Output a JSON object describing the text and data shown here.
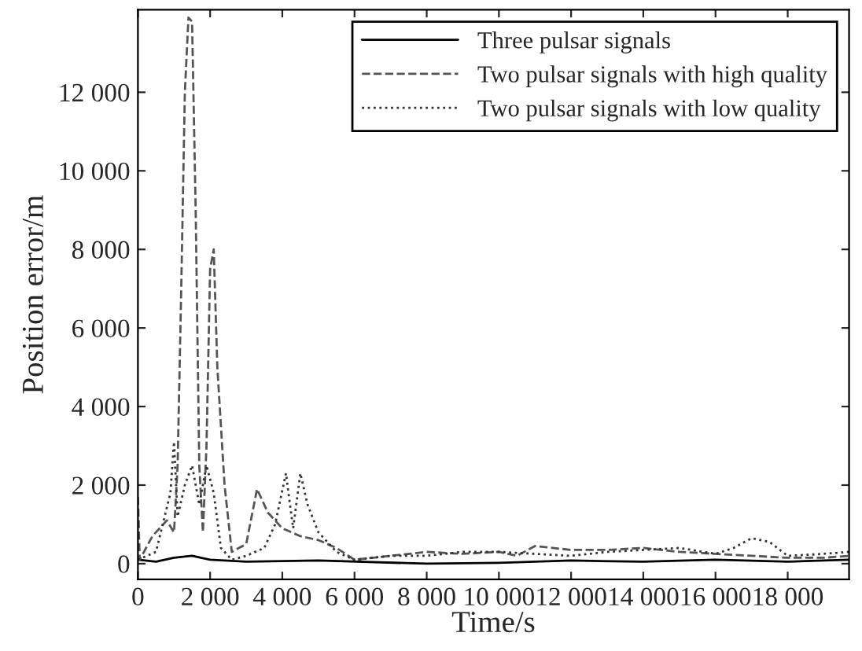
{
  "chart_data": {
    "type": "line",
    "xlabel": "Time/s",
    "ylabel": "Position error/m",
    "xlim": [
      0,
      19700
    ],
    "ylim": [
      -400,
      14100
    ],
    "xticks": [
      0,
      {
        "value": 2000,
        "label": "2 000"
      },
      {
        "value": 4000,
        "label": "4 000"
      },
      {
        "value": 6000,
        "label": "6 000"
      },
      {
        "value": 8000,
        "label": "8 000"
      },
      {
        "value": 10000,
        "label": "10 000"
      },
      {
        "value": 12000,
        "label": "12 000"
      },
      {
        "value": 14000,
        "label": "14 000"
      },
      {
        "value": 16000,
        "label": "16 000"
      },
      {
        "value": 18000,
        "label": "18 000"
      }
    ],
    "yticks": [
      0,
      {
        "value": 2000,
        "label": "2 000"
      },
      {
        "value": 4000,
        "label": "4 000"
      },
      {
        "value": 6000,
        "label": "6 000"
      },
      {
        "value": 8000,
        "label": "8 000"
      },
      {
        "value": 10000,
        "label": "10 000"
      },
      {
        "value": 12000,
        "label": "12 000"
      }
    ],
    "grid": false,
    "legend": "top right",
    "marker": "none",
    "series": [
      {
        "name": "Three pulsar signals",
        "color": "#000000",
        "line_style": "solid",
        "x": [
          0,
          500,
          1000,
          1500,
          2000,
          3000,
          5000,
          8000,
          10000,
          12000,
          14000,
          16000,
          18000,
          19700
        ],
        "values": [
          100,
          50,
          150,
          200,
          100,
          50,
          80,
          0,
          20,
          80,
          50,
          100,
          50,
          100
        ]
      },
      {
        "name": "Two pulsar signals with high quality",
        "color": "#555555",
        "line_style": "dashed",
        "x": [
          0,
          50,
          400,
          800,
          1000,
          1100,
          1200,
          1300,
          1400,
          1500,
          1600,
          1700,
          1800,
          1900,
          2000,
          2100,
          2200,
          2400,
          2600,
          3000,
          3300,
          3600,
          4000,
          4500,
          5000,
          5500,
          6000,
          7000,
          8000,
          9000,
          10000,
          10500,
          11000,
          12000,
          13000,
          14000,
          15000,
          16000,
          17000,
          18000,
          19000,
          19700
        ],
        "values": [
          1700,
          100,
          700,
          1100,
          800,
          2500,
          7000,
          12000,
          13900,
          13800,
          9000,
          2500,
          800,
          3000,
          7500,
          8000,
          5000,
          2000,
          300,
          500,
          1900,
          1300,
          900,
          700,
          600,
          400,
          100,
          200,
          300,
          250,
          300,
          200,
          450,
          350,
          350,
          400,
          300,
          250,
          200,
          150,
          150,
          200
        ]
      },
      {
        "name": "Two pulsar signals with low quality",
        "color": "#333333",
        "line_style": "dotted",
        "x": [
          0,
          500,
          900,
          1000,
          1100,
          1300,
          1500,
          1700,
          1900,
          2100,
          2300,
          2600,
          3000,
          3500,
          3800,
          4100,
          4300,
          4500,
          4700,
          5000,
          5500,
          6000,
          7000,
          8000,
          9000,
          10000,
          11000,
          12000,
          13000,
          14000,
          15000,
          16000,
          16500,
          17000,
          17500,
          18000,
          19000,
          19700
        ],
        "values": [
          100,
          300,
          1800,
          3100,
          1200,
          2000,
          2500,
          1500,
          2500,
          1800,
          400,
          100,
          200,
          400,
          1000,
          2300,
          900,
          2300,
          1500,
          800,
          300,
          100,
          200,
          200,
          300,
          300,
          250,
          200,
          300,
          350,
          400,
          250,
          400,
          650,
          550,
          200,
          250,
          300
        ]
      }
    ]
  }
}
